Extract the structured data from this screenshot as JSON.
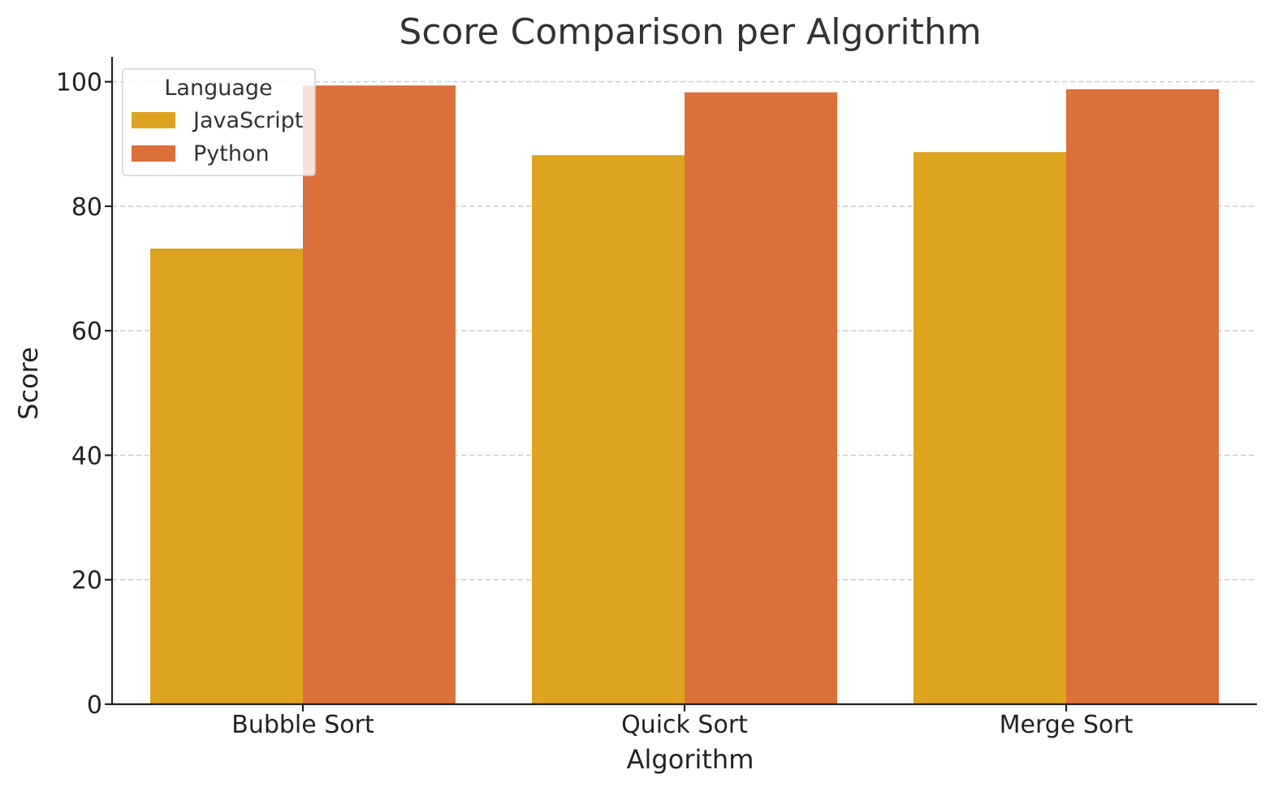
{
  "chart_data": {
    "type": "bar",
    "title": "Score Comparison per Algorithm",
    "xlabel": "Algorithm",
    "ylabel": "Score",
    "categories": [
      "Bubble Sort",
      "Quick Sort",
      "Merge Sort"
    ],
    "series": [
      {
        "name": "JavaScript",
        "color": "#DEA31F",
        "values": [
          73.2,
          88.2,
          88.7
        ]
      },
      {
        "name": "Python",
        "color": "#DB703A",
        "values": [
          99.4,
          98.3,
          98.8
        ]
      }
    ],
    "ylim": [
      0,
      104
    ],
    "yticks": [
      "0",
      "20",
      "40",
      "60",
      "80",
      "100"
    ],
    "grid": true,
    "legend": {
      "title": "Language",
      "placement": "top-left"
    }
  }
}
